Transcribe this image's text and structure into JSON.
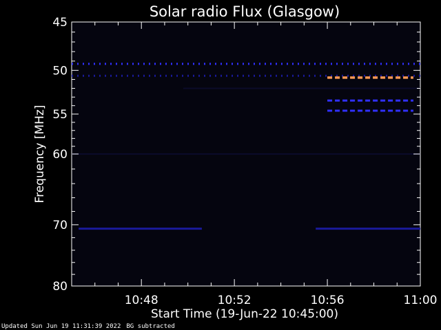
{
  "chart_data": {
    "type": "heatmap",
    "title": "Solar radio Flux (Glasgow)",
    "xlabel": "Start Time (19-Jun-22 10:45:00)",
    "ylabel": "Frequency [MHz]",
    "x_range_minutes_after_start": [
      0,
      15
    ],
    "y_range_mhz": [
      45,
      80
    ],
    "y_scale": "log",
    "x_ticks": [
      {
        "minute": 3,
        "label": "10:48"
      },
      {
        "minute": 7,
        "label": "10:52"
      },
      {
        "minute": 11,
        "label": "10:56"
      },
      {
        "minute": 15,
        "label": "11:00"
      }
    ],
    "y_ticks": [
      {
        "value": 45,
        "label": "45"
      },
      {
        "value": 50,
        "label": "50"
      },
      {
        "value": 55,
        "label": "55"
      },
      {
        "value": 60,
        "label": "60"
      },
      {
        "value": 70,
        "label": "70"
      },
      {
        "value": 80,
        "label": "80"
      }
    ],
    "colors": {
      "background": "#000000",
      "low": "#0a0a2a",
      "mid": "#1a1a9a",
      "high": "#3030ff",
      "peak": "#ff9955"
    },
    "emission_bands": [
      {
        "freq_mhz": 49.3,
        "start_min": 0,
        "end_min": 15,
        "intensity": "high",
        "dashed": true
      },
      {
        "freq_mhz": 50.6,
        "start_min": 0,
        "end_min": 15,
        "intensity": "mid",
        "dashed": true
      },
      {
        "freq_mhz": 50.8,
        "start_min": 11,
        "end_min": 14.7,
        "intensity": "peak",
        "dashed": true
      },
      {
        "freq_mhz": 52.0,
        "start_min": 4.8,
        "end_min": 15,
        "intensity": "low",
        "dashed": false
      },
      {
        "freq_mhz": 53.4,
        "start_min": 11,
        "end_min": 14.7,
        "intensity": "high",
        "dashed": true
      },
      {
        "freq_mhz": 54.6,
        "start_min": 11,
        "end_min": 14.7,
        "intensity": "high",
        "dashed": true
      },
      {
        "freq_mhz": 60.0,
        "start_min": 0,
        "end_min": 15,
        "intensity": "low",
        "dashed": false
      },
      {
        "freq_mhz": 70.6,
        "start_min": 0.3,
        "end_min": 5.6,
        "intensity": "mid",
        "dashed": false
      },
      {
        "freq_mhz": 70.6,
        "start_min": 10.5,
        "end_min": 15,
        "intensity": "mid",
        "dashed": false
      }
    ]
  },
  "footer": {
    "updated": "Updated Sun Jun 19 11:31:39 2022",
    "note": "BG subtracted"
  }
}
